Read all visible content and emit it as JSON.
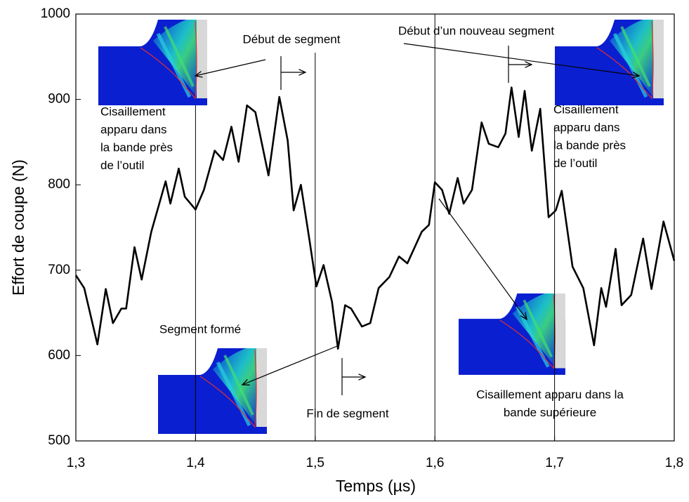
{
  "chart_data": {
    "type": "line",
    "x_label": "Temps (µs)",
    "y_label": "Effort de coupe (N)",
    "x": [
      1.3,
      1.307,
      1.318,
      1.325,
      1.331,
      1.338,
      1.342,
      1.349,
      1.355,
      1.363,
      1.375,
      1.379,
      1.386,
      1.391,
      1.4,
      1.407,
      1.416,
      1.423,
      1.43,
      1.436,
      1.443,
      1.45,
      1.461,
      1.47,
      1.477,
      1.482,
      1.488,
      1.495,
      1.501,
      1.507,
      1.514,
      1.519,
      1.525,
      1.53,
      1.539,
      1.546,
      1.553,
      1.562,
      1.57,
      1.577,
      1.589,
      1.595,
      1.6,
      1.606,
      1.612,
      1.619,
      1.624,
      1.631,
      1.639,
      1.645,
      1.653,
      1.659,
      1.664,
      1.67,
      1.675,
      1.681,
      1.688,
      1.695,
      1.701,
      1.706,
      1.715,
      1.724,
      1.733,
      1.739,
      1.743,
      1.751,
      1.756,
      1.764,
      1.774,
      1.781,
      1.791,
      1.8
    ],
    "series": [
      {
        "color": "#000000",
        "values": [
          694,
          679,
          613,
          678,
          638,
          655,
          655,
          727,
          689,
          745,
          804,
          778,
          819,
          786,
          771,
          794,
          840,
          829,
          868,
          827,
          893,
          885,
          811,
          903,
          852,
          770,
          800,
          737,
          681,
          706,
          663,
          608,
          659,
          655,
          634,
          638,
          679,
          692,
          716,
          708,
          745,
          753,
          803,
          794,
          766,
          808,
          778,
          794,
          873,
          848,
          844,
          860,
          914,
          856,
          910,
          840,
          889,
          762,
          770,
          793,
          704,
          679,
          612,
          679,
          657,
          725,
          659,
          671,
          737,
          678,
          757,
          711
        ]
      }
    ],
    "xlim": [
      1.3,
      1.8
    ],
    "ylim": [
      500,
      1000
    ],
    "xticks": [
      {
        "value": 1.3,
        "label": "1,3"
      },
      {
        "value": 1.4,
        "label": "1,4"
      },
      {
        "value": 1.5,
        "label": "1,5"
      },
      {
        "value": 1.6,
        "label": "1,6"
      },
      {
        "value": 1.7,
        "label": "1,7"
      },
      {
        "value": 1.8,
        "label": "1,8"
      }
    ],
    "yticks": [
      500,
      600,
      700,
      800,
      900,
      1000
    ],
    "vlines": [
      1.4,
      1.5,
      1.6,
      1.7
    ],
    "annotations": [
      {
        "lines": [
          "Début de segment"
        ]
      },
      {
        "lines": [
          "Début d’un nouveau segment"
        ]
      },
      {
        "lines": [
          "Cisaillement",
          "apparu dans",
          "la bande près",
          "de l’outil"
        ]
      },
      {
        "lines": [
          "Cisaillement",
          "apparu dans",
          "la bande près",
          "de l’outil"
        ]
      },
      {
        "lines": [
          "Segment formé"
        ]
      },
      {
        "lines": [
          "Fin de segment"
        ]
      },
      {
        "lines": [
          "Cisaillement apparu dans la",
          "bande supérieure"
        ]
      }
    ]
  }
}
